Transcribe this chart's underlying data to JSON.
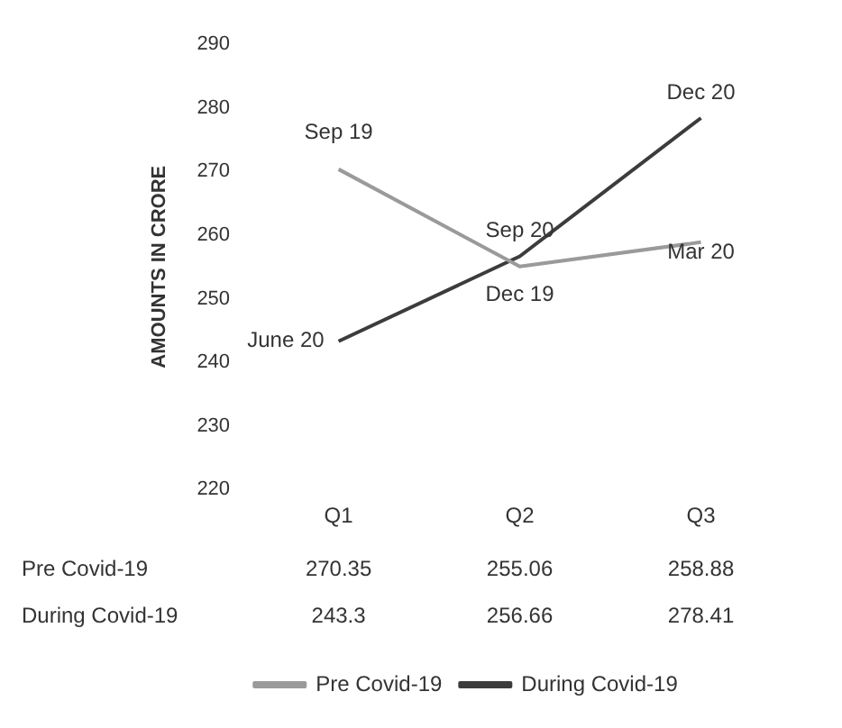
{
  "chart_data": {
    "type": "line",
    "ylabel": "AMOUNTS IN CRORE",
    "categories": [
      "Q1",
      "Q2",
      "Q3"
    ],
    "series": [
      {
        "name": "Pre Covid-19",
        "color": "#9a9a9a",
        "values": [
          270.35,
          255.06,
          258.88
        ]
      },
      {
        "name": "During Covid-19",
        "color": "#3c3c3c",
        "values": [
          243.3,
          256.66,
          278.41
        ]
      }
    ],
    "ylim": [
      220,
      290
    ],
    "yticks": [
      220,
      230,
      240,
      250,
      260,
      270,
      280,
      290
    ],
    "grid": false,
    "legend": "bottom",
    "marker": "none",
    "data_labels": true,
    "annotations": [
      {
        "text": "Sep 19",
        "x": "Q1",
        "y": 270.35
      },
      {
        "text": "Dec 19",
        "x": "Q2",
        "y": 255.06
      },
      {
        "text": "Mar 20",
        "x": "Q3",
        "y": 258.88
      },
      {
        "text": "June 20",
        "x": "Q1",
        "y": 243.3
      },
      {
        "text": "Sep 20",
        "x": "Q2",
        "y": 256.66
      },
      {
        "text": "Dec 20",
        "x": "Q3",
        "y": 278.41
      }
    ]
  }
}
